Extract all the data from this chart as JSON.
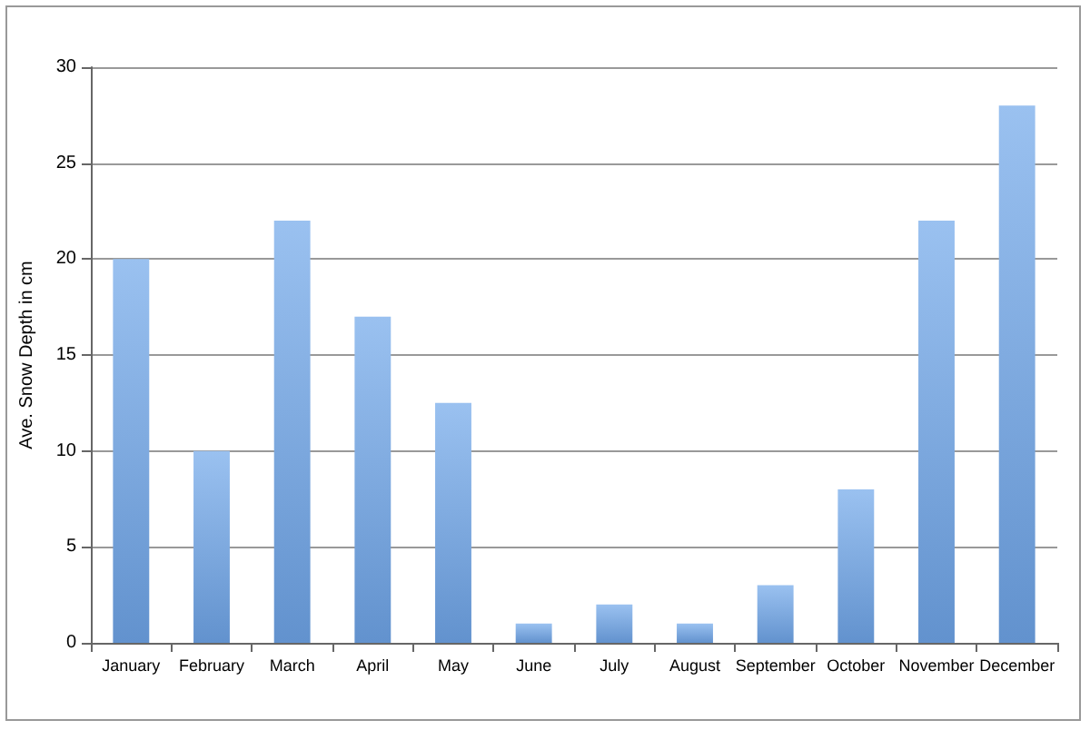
{
  "chart_data": {
    "type": "bar",
    "ylabel": "Ave. Snow Depth in cm",
    "categories": [
      "January",
      "February",
      "March",
      "April",
      "May",
      "June",
      "July",
      "August",
      "September",
      "October",
      "November",
      "December"
    ],
    "values": [
      20,
      10,
      22,
      17,
      12.5,
      1,
      2,
      1,
      3,
      8,
      22,
      28
    ],
    "color": "#6fa6ea",
    "ylim": [
      0,
      30
    ],
    "yticks": [
      0,
      5,
      10,
      15,
      20,
      25,
      30
    ],
    "grid": "y"
  }
}
